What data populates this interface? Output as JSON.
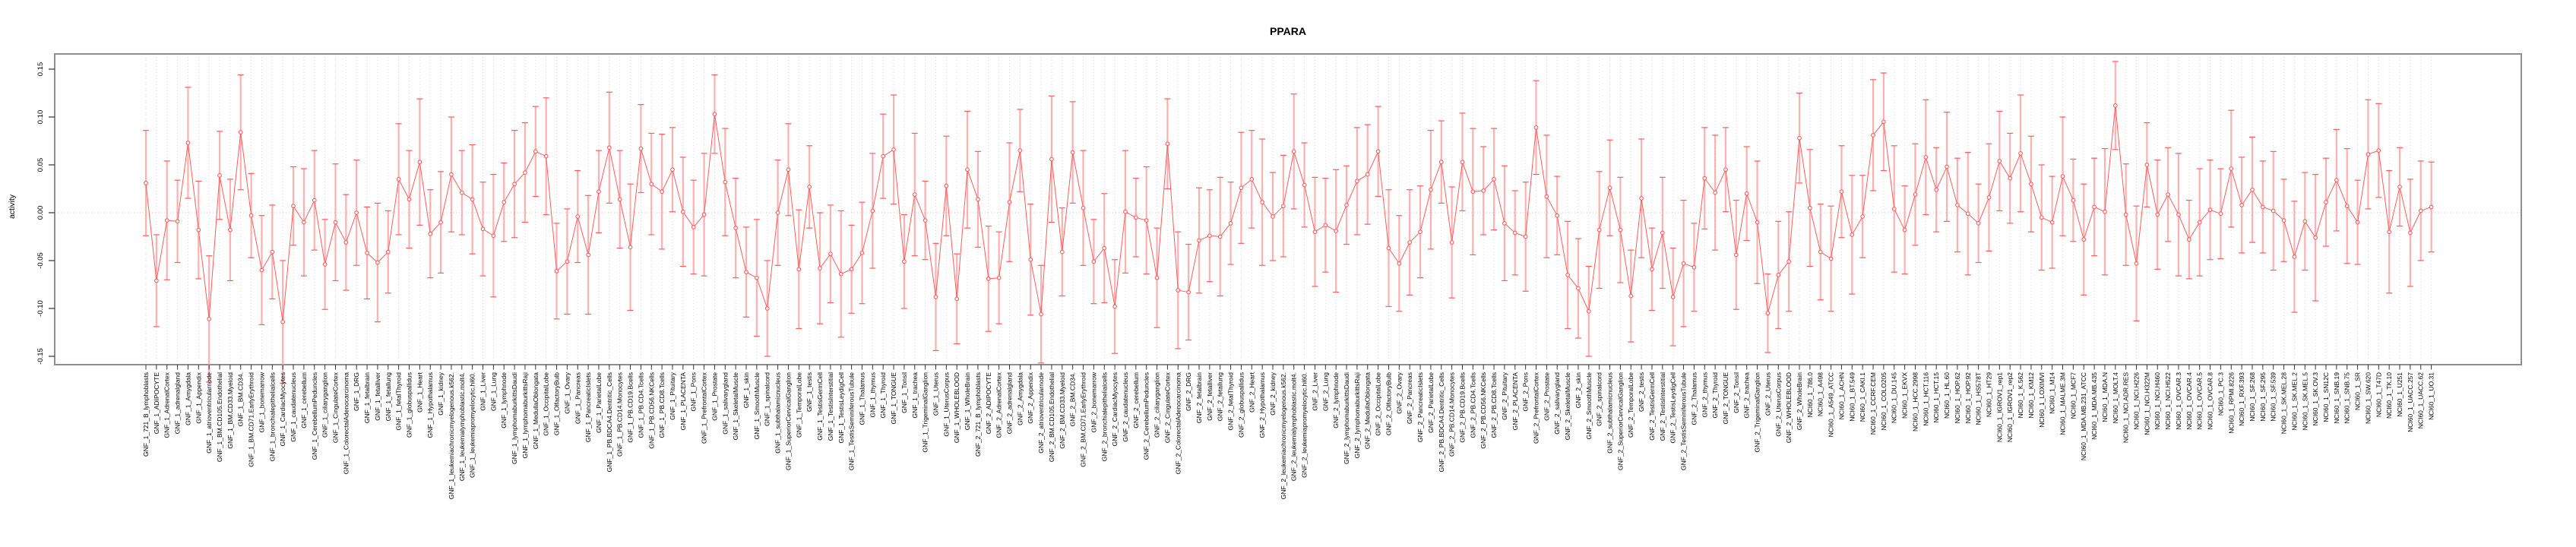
{
  "chart_data": {
    "type": "line",
    "title": "PPARA",
    "xlabel": "",
    "ylabel": "activity",
    "ylim": [
      -0.165,
      0.166
    ],
    "grid": true,
    "legend": "none",
    "y_ticks": [
      -0.15,
      -0.1,
      -0.05,
      0.0,
      0.05,
      0.1,
      0.15
    ],
    "y_tick_labels": [
      "-0.15",
      "-0.10",
      "-0.05",
      "0.00",
      "0.05",
      "0.10",
      "0.15"
    ],
    "colors": {
      "marker_line": "#ff5b5b",
      "error_stem": "#ff9e9e",
      "gridline": "#dcdcdc",
      "zero_line": "#c9c9c9",
      "frame": "#8f8f8f",
      "tick": "#333333",
      "label_text": "#000000"
    },
    "groups": [
      {
        "prefix": "GNF_1_",
        "names_key": "gnf_tissues"
      },
      {
        "prefix": "GNF_2_",
        "names_key": "gnf_tissues"
      },
      {
        "prefix": "NCI60_1_",
        "names_key": "nci60_lines"
      }
    ],
    "name_lists": {
      "gnf_tissues": [
        "721_B_lymphoblasts",
        "ADIPOCYTE",
        "AdrenalCortex",
        "adrenalgland",
        "Amygdala",
        "Appendix",
        "atrioventricularnode",
        "BM.CD105.Endothelial",
        "BM.CD33.Myeloid",
        "BM.CD34.",
        "BM.CD71.EarlyErythroid",
        "bonemarrow",
        "bronchialepithelialcells",
        "CardiacMyocytes",
        "caudatenucleus",
        "cerebellum",
        "CerebellumPeduncles",
        "ciliaryganglion",
        "CingulateCortex",
        "ColorectalAdenocarcinoma",
        "DRG",
        "fetalbrain",
        "fetalliver",
        "fetallung",
        "fetalThyroid",
        "globuspallidus",
        "Heart",
        "Hypothalamus",
        "kidney",
        "leukemiachronicmyelogenous.k562.",
        "leukemialymphoblastic.molt4.",
        "leukemiapromyelocytic.hl60.",
        "Liver",
        "Lung",
        "lymphnode",
        "lymphomaburkittsDaudi",
        "lymphomaburkittsRaji",
        "MedullaOblongata",
        "OccipitalLobe",
        "OlfactoryBulb",
        "Ovary",
        "Pancreas",
        "PancreaticIslets",
        "ParietalLobe",
        "PB.BDCA4.Dentritic_Cells",
        "PB.CD14.Monocytes",
        "PB.CD19.Bcells",
        "PB.CD4.Tcells",
        "PB.CD56.NKCells",
        "PB.CD8.Tcells",
        "Pituitary",
        "PLACENTA",
        "Pons",
        "PrefrontalCortex",
        "Prostate",
        "salivarygland",
        "SkeletalMuscle",
        "skin",
        "SmoothMuscle",
        "spinalcord",
        "subthalamicnucleus",
        "SuperiorCervicalGanglion",
        "TemporalLobe",
        "testis",
        "TestisGermCell",
        "TestisInterstitial",
        "TestisLeydigCell",
        "TestisSeminiferousTubule",
        "Thalamus",
        "thymus",
        "Thyroid",
        "TONGUE",
        "Tonsil",
        "trachea",
        "TrigeminalGanglion",
        "Uterus",
        "UterusCorpus",
        "WHOLEBLOOD",
        "WholeBrain"
      ],
      "nci60_lines": [
        "786.0",
        "A498",
        "A549_ATCC",
        "ACHN",
        "BT.549",
        "CAKI.1",
        "CCRF.CEM",
        "COLO205",
        "DU.145",
        "EKVX",
        "HCC.2998",
        "HCT.116",
        "HCT.15",
        "HL.60",
        "HOP.62",
        "HOP.92",
        "HS578T",
        "HT29",
        "IGROV1_rep1",
        "IGROV1_rep2",
        "K.562",
        "KM12",
        "LOXIMVI",
        "M14",
        "MALME.3M",
        "MCF7",
        "MDA.MB.231_ATCC",
        "MDA.MB.435",
        "MDA.N",
        "MOLT.4",
        "NCI.ADR.RES",
        "NCI.H226",
        "NCI.H322M",
        "NCI.H460",
        "NCI.H522",
        "OVCAR.3",
        "OVCAR.4",
        "OVCAR.5",
        "OVCAR.8",
        "PC.3",
        "RPMI.8226",
        "RXF.393",
        "SF.268",
        "SF.295",
        "SF.539",
        "SK.MEL.28",
        "SK.MEL.2",
        "SK.MEL.5",
        "SK.OV.3",
        "SN12C",
        "SNB.19",
        "SNB.75",
        "SR",
        "SW.620",
        "T47D",
        "TK.10",
        "U251",
        "UACC.257",
        "UACC.62",
        "UO.31"
      ]
    },
    "values": [
      0.031,
      -0.071,
      -0.008,
      -0.009,
      0.073,
      -0.018,
      -0.111,
      0.039,
      -0.018,
      0.084,
      -0.003,
      -0.06,
      -0.041,
      -0.114,
      0.007,
      -0.01,
      0.013,
      -0.054,
      -0.01,
      -0.031,
      0.0,
      -0.042,
      -0.052,
      -0.041,
      0.035,
      0.014,
      0.053,
      -0.022,
      -0.01,
      0.04,
      0.021,
      0.014,
      -0.017,
      -0.024,
      0.011,
      0.03,
      0.042,
      0.064,
      0.059,
      -0.061,
      -0.051,
      -0.004,
      -0.044,
      0.022,
      0.068,
      0.014,
      -0.036,
      0.067,
      0.03,
      0.022,
      0.045,
      0.001,
      -0.015,
      -0.002,
      0.103,
      0.032,
      -0.016,
      -0.062,
      -0.068,
      -0.1,
      0.0,
      0.045,
      -0.059,
      0.027,
      -0.058,
      -0.043,
      -0.064,
      -0.059,
      -0.042,
      0.002,
      0.059,
      0.066,
      -0.051,
      0.019,
      -0.008,
      -0.088,
      0.028,
      -0.09,
      0.045,
      0.014,
      -0.069,
      -0.068,
      0.011,
      0.065,
      -0.049,
      -0.106,
      0.056,
      -0.041,
      0.063,
      0.005,
      -0.051,
      -0.037,
      -0.098,
      0.001,
      -0.005,
      -0.008,
      -0.068,
      0.072,
      -0.081,
      -0.083,
      -0.029,
      -0.024,
      -0.025,
      -0.011,
      0.026,
      0.035,
      0.011,
      -0.004,
      0.007,
      0.064,
      0.029,
      -0.02,
      -0.013,
      -0.019,
      0.008,
      0.033,
      0.04,
      0.064,
      -0.037,
      -0.053,
      -0.031,
      -0.02,
      0.024,
      0.053,
      -0.031,
      0.053,
      0.022,
      0.023,
      0.035,
      -0.011,
      -0.021,
      -0.025,
      0.089,
      0.017,
      -0.003,
      -0.065,
      -0.079,
      -0.103,
      -0.018,
      0.026,
      -0.018,
      -0.087,
      0.015,
      -0.059,
      -0.021,
      -0.088,
      -0.053,
      -0.057,
      0.036,
      0.021,
      0.045,
      -0.044,
      0.02,
      -0.01,
      -0.105,
      -0.065,
      -0.051,
      0.078,
      0.005,
      -0.041,
      -0.048,
      0.022,
      -0.023,
      -0.004,
      0.081,
      0.095,
      0.004,
      -0.018,
      0.019,
      0.058,
      0.024,
      0.048,
      0.008,
      -0.001,
      -0.011,
      0.016,
      0.054,
      0.036,
      0.062,
      0.03,
      -0.005,
      -0.01,
      0.038,
      0.013,
      -0.028,
      0.006,
      0.001,
      0.112,
      -0.002,
      -0.053,
      0.05,
      -0.002,
      0.019,
      -0.002,
      -0.028,
      -0.01,
      0.003,
      -0.001,
      0.046,
      0.008,
      0.024,
      0.006,
      0.002,
      -0.008,
      -0.046,
      -0.009,
      -0.026,
      0.011,
      0.034,
      0.007,
      -0.01,
      0.061,
      0.065,
      -0.02,
      0.027,
      -0.021,
      0.002,
      0.006
    ],
    "errors": [
      0.055,
      0.048,
      0.062,
      0.043,
      0.058,
      0.051,
      0.066,
      0.046,
      0.053,
      0.06,
      0.044,
      0.057,
      0.049,
      0.064,
      0.041,
      0.056,
      0.052,
      0.047,
      0.061,
      0.05,
      0.055,
      0.048,
      0.062,
      0.043,
      0.058,
      0.051,
      0.066,
      0.046,
      0.053,
      0.06,
      0.044,
      0.057,
      0.049,
      0.064,
      0.041,
      0.056,
      0.052,
      0.047,
      0.061,
      0.05,
      0.055,
      0.048,
      0.062,
      0.043,
      0.058,
      0.051,
      0.066,
      0.046,
      0.053,
      0.06,
      0.044,
      0.057,
      0.049,
      0.064,
      0.041,
      0.056,
      0.052,
      0.047,
      0.061,
      0.05,
      0.055,
      0.048,
      0.062,
      0.043,
      0.058,
      0.051,
      0.066,
      0.046,
      0.053,
      0.06,
      0.044,
      0.057,
      0.049,
      0.064,
      0.041,
      0.056,
      0.052,
      0.047,
      0.061,
      0.05,
      0.055,
      0.048,
      0.062,
      0.043,
      0.058,
      0.051,
      0.066,
      0.046,
      0.053,
      0.06,
      0.044,
      0.057,
      0.049,
      0.064,
      0.041,
      0.056,
      0.052,
      0.047,
      0.061,
      0.05,
      0.055,
      0.048,
      0.062,
      0.043,
      0.058,
      0.051,
      0.066,
      0.046,
      0.053,
      0.06,
      0.044,
      0.057,
      0.049,
      0.064,
      0.041,
      0.056,
      0.052,
      0.047,
      0.061,
      0.05,
      0.055,
      0.048,
      0.062,
      0.043,
      0.058,
      0.051,
      0.066,
      0.046,
      0.053,
      0.06,
      0.044,
      0.057,
      0.049,
      0.064,
      0.041,
      0.056,
      0.052,
      0.047,
      0.061,
      0.05,
      0.055,
      0.048,
      0.062,
      0.043,
      0.058,
      0.051,
      0.066,
      0.046,
      0.053,
      0.06,
      0.044,
      0.057,
      0.049,
      0.064,
      0.041,
      0.056,
      0.052,
      0.047,
      0.061,
      0.05,
      0.055,
      0.048,
      0.062,
      0.043,
      0.058,
      0.051,
      0.066,
      0.046,
      0.053,
      0.06,
      0.044,
      0.057,
      0.049,
      0.064,
      0.041,
      0.056,
      0.052,
      0.047,
      0.061,
      0.05,
      0.055,
      0.048,
      0.062,
      0.043,
      0.058,
      0.051,
      0.066,
      0.046,
      0.053,
      0.06,
      0.044,
      0.057,
      0.049,
      0.064,
      0.041,
      0.056,
      0.052,
      0.047,
      0.061,
      0.05,
      0.055,
      0.048,
      0.062,
      0.043,
      0.058,
      0.051,
      0.066,
      0.046,
      0.053,
      0.06,
      0.044,
      0.057,
      0.049,
      0.064,
      0.041,
      0.056,
      0.052,
      0.047
    ]
  }
}
